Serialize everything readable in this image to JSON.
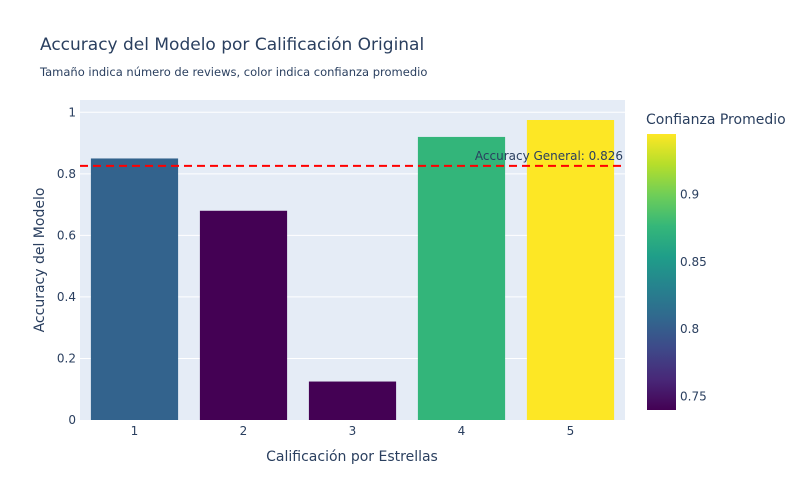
{
  "chart_data": {
    "type": "bar",
    "title": "Accuracy del Modelo por Calificación Original",
    "subtitle": "Tamaño indica número de reviews, color indica confianza promedio",
    "xlabel": "Calificación por Estrellas",
    "ylabel": "Accuracy del Modelo",
    "categories": [
      "1",
      "2",
      "3",
      "4",
      "5"
    ],
    "values": [
      0.85,
      0.68,
      0.125,
      0.92,
      0.975
    ],
    "confidence": [
      0.805,
      0.74,
      0.74,
      0.875,
      0.945
    ],
    "ylim": [
      0,
      1.04
    ],
    "yticks": [
      0,
      0.2,
      0.4,
      0.6,
      0.8,
      1
    ],
    "ytick_labels": [
      "0",
      "0.2",
      "0.4",
      "0.6",
      "0.8",
      "1"
    ],
    "grid": true,
    "reference_line": {
      "value": 0.826,
      "label": "Accuracy General: 0.826",
      "color": "#ff0000",
      "style": "dashed"
    },
    "colorbar": {
      "title": "Confianza Promedio",
      "range": [
        0.74,
        0.945
      ],
      "ticks": [
        0.75,
        0.8,
        0.85,
        0.9
      ],
      "tick_labels": [
        "0.75",
        "0.8",
        "0.85",
        "0.9"
      ],
      "colorscale": [
        "#440154",
        "#482878",
        "#3e4989",
        "#31688e",
        "#26828e",
        "#1f9e89",
        "#35b779",
        "#6ece58",
        "#b5de2b",
        "#fde725"
      ]
    },
    "plot_bg": "#e5ecf6"
  }
}
